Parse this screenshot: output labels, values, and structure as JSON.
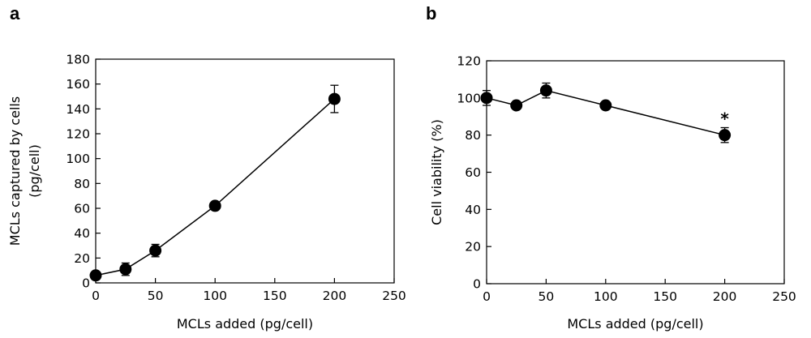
{
  "chart_data": [
    {
      "panel": "a",
      "type": "line",
      "xlabel": "MCLs added (pg/cell)",
      "ylabel_line1": "MCLs captured by cells",
      "ylabel_line2": "(pg/cell)",
      "xlim": [
        0,
        250
      ],
      "ylim": [
        0,
        180
      ],
      "xticks": [
        0,
        50,
        100,
        150,
        200,
        250
      ],
      "yticks": [
        0,
        20,
        40,
        60,
        80,
        100,
        120,
        140,
        160,
        180
      ],
      "x": [
        0,
        25,
        50,
        100,
        200
      ],
      "y": [
        6,
        11,
        26,
        62,
        148
      ],
      "err": [
        1,
        5,
        5,
        1,
        11
      ],
      "annotations": []
    },
    {
      "panel": "b",
      "type": "line",
      "xlabel": "MCLs added (pg/cell)",
      "ylabel_line1": "Cell viability (%)",
      "ylabel_line2": "",
      "xlim": [
        0,
        250
      ],
      "ylim": [
        0,
        120
      ],
      "xticks": [
        0,
        50,
        100,
        150,
        200,
        250
      ],
      "yticks": [
        0,
        20,
        40,
        60,
        80,
        100,
        120
      ],
      "x": [
        0,
        25,
        50,
        100,
        200
      ],
      "y": [
        100,
        96,
        104,
        96,
        80
      ],
      "err": [
        4,
        1,
        4,
        1,
        4
      ],
      "annotations": [
        {
          "x": 200,
          "text": "*"
        }
      ]
    }
  ]
}
